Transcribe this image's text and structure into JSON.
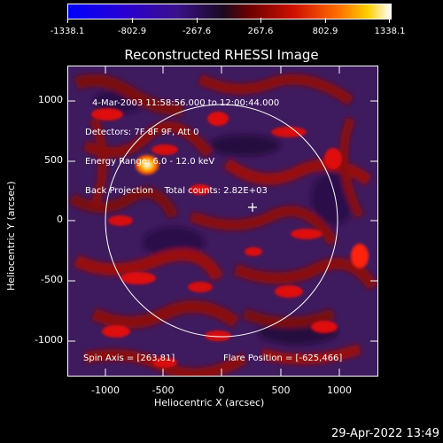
{
  "colorbar": {
    "ticks": [
      "-1338.1",
      "-802.9",
      "-267.6",
      "267.6",
      "802.9",
      "1338.1"
    ]
  },
  "plot": {
    "title": "Reconstructed RHESSI Image",
    "info_lines": [
      "4-Mar-2003 11:58:56.000 to 12:00:44.000",
      "Detectors: 7F 8F 9F, Att 0",
      "Energy Range: 6.0 - 12.0 keV",
      "Back Projection    Total counts: 2.82E+03"
    ],
    "spin_axis": "Spin Axis = [263,81]",
    "flare_position": "Flare Position = [-625,466]",
    "x_axis_label": "Heliocentric X (arcsec)",
    "y_axis_label": "Heliocentric Y (arcsec)",
    "x_ticks": [
      "-1000",
      "-500",
      "0",
      "500",
      "1000"
    ],
    "y_ticks": [
      "1000",
      "500",
      "0",
      "-500",
      "-1000"
    ]
  },
  "footer": {
    "timestamp": "29-Apr-2022 13:49"
  },
  "colors": {
    "low": "#1a00ff",
    "mid_neg": "#5a1a8c",
    "mid_pos": "#c00000",
    "high": "#ffffff"
  }
}
